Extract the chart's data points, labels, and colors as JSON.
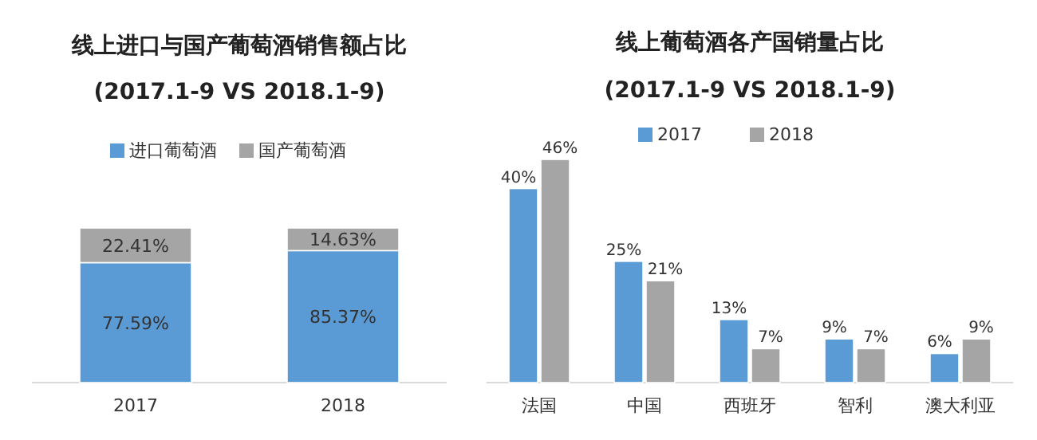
{
  "chart_data": [
    {
      "type": "bar",
      "title": "线上进口与国产葡萄酒销售额占比",
      "subtitle": "(2017.1-9 VS 2018.1-9)",
      "categories": [
        "2017",
        "2018"
      ],
      "stacked": true,
      "legend": "top",
      "series": [
        {
          "name": "进口葡萄酒",
          "color": "#5b9bd5",
          "values": [
            77.59,
            85.37
          ],
          "value_labels": [
            "77.59%",
            "85.37%"
          ]
        },
        {
          "name": "国产葡萄酒",
          "color": "#a5a5a5",
          "values": [
            22.41,
            14.63
          ],
          "value_labels": [
            "22.41%",
            "14.63%"
          ]
        }
      ]
    },
    {
      "type": "bar",
      "title": "线上葡萄酒各产国销量占比",
      "subtitle": "(2017.1-9 VS 2018.1-9)",
      "categories": [
        "法国",
        "中国",
        "西班牙",
        "智利",
        "澳大利亚"
      ],
      "legend": "top",
      "series": [
        {
          "name": "2017",
          "color": "#5b9bd5",
          "values": [
            40,
            25,
            13,
            9,
            6
          ],
          "value_labels": [
            "40%",
            "25%",
            "13%",
            "9%",
            "6%"
          ]
        },
        {
          "name": "2018",
          "color": "#a5a5a5",
          "values": [
            46,
            21,
            7,
            7,
            9
          ],
          "value_labels": [
            "46%",
            "21%",
            "7%",
            "7%",
            "9%"
          ]
        }
      ]
    }
  ]
}
